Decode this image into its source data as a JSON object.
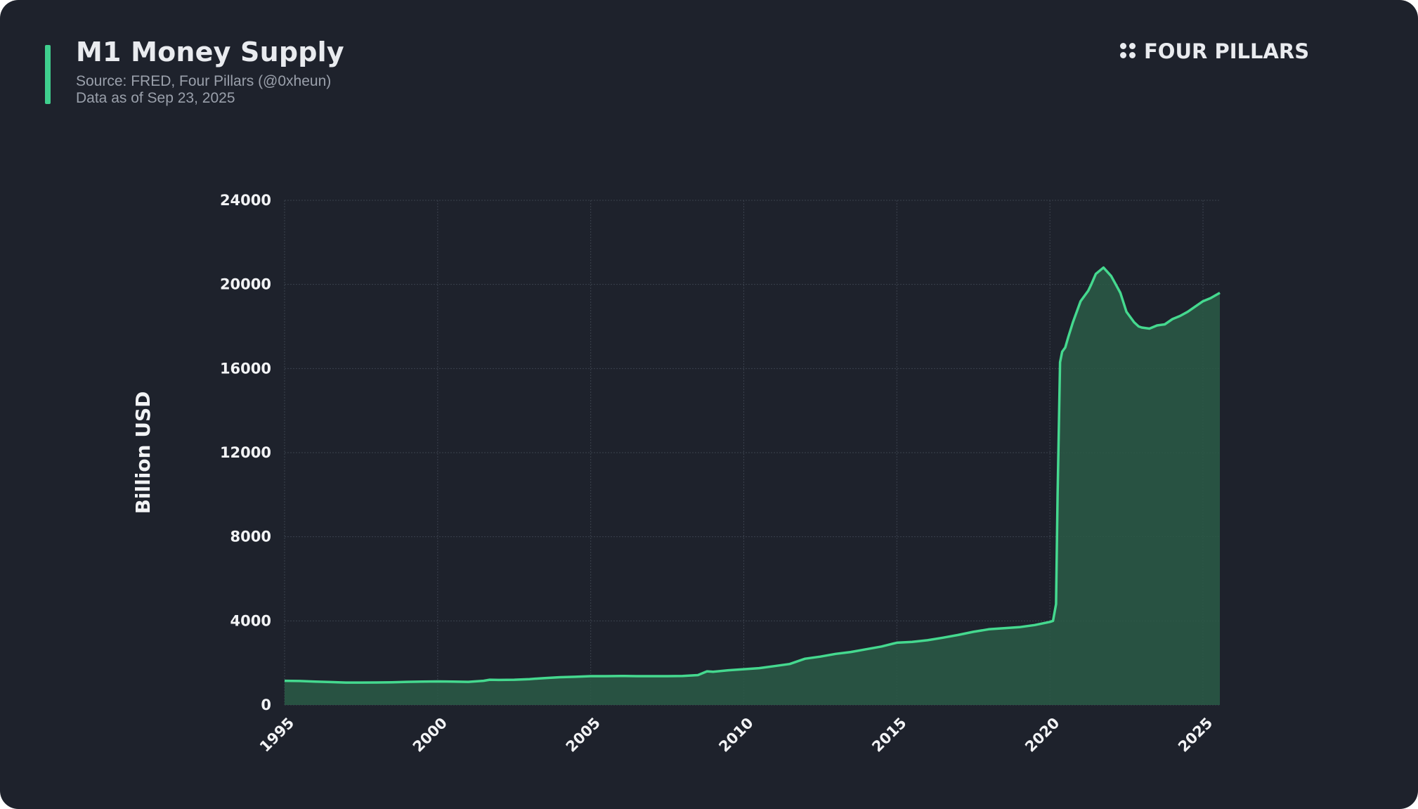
{
  "header": {
    "title": "M1 Money Supply",
    "source": "Source: FRED, Four Pillars (@0xheun)",
    "as_of": "Data as of Sep 23, 2025"
  },
  "brand": {
    "name": "FOUR PILLARS",
    "icon": "four-dots-icon"
  },
  "colors": {
    "background": "#1e222c",
    "accent": "#3fcf8e",
    "line": "#45d98f",
    "area": "#2a5b46",
    "grid": "#3b414d",
    "text": "#f2f3f5"
  },
  "chart_data": {
    "type": "area",
    "title": "M1 Money Supply",
    "xlabel": "",
    "ylabel": "Billion USD",
    "xlim": [
      1995,
      2025.55
    ],
    "ylim": [
      0,
      24000
    ],
    "x_ticks": [
      1995,
      2000,
      2005,
      2010,
      2015,
      2020,
      2025
    ],
    "y_ticks": [
      0,
      4000,
      8000,
      12000,
      16000,
      20000,
      24000
    ],
    "grid": true,
    "legend": "none",
    "series": [
      {
        "x": [
          1995.0,
          1995.5,
          1996.0,
          1996.5,
          1997.0,
          1997.5,
          1998.0,
          1998.5,
          1999.0,
          1999.5,
          2000.0,
          2000.5,
          2001.0,
          2001.5,
          2001.7,
          2002.0,
          2002.5,
          2003.0,
          2003.5,
          2004.0,
          2004.5,
          2005.0,
          2005.5,
          2006.0,
          2006.5,
          2007.0,
          2007.5,
          2008.0,
          2008.5,
          2008.8,
          2009.0,
          2009.5,
          2010.0,
          2010.5,
          2011.0,
          2011.5,
          2011.8,
          2012.0,
          2012.5,
          2013.0,
          2013.5,
          2014.0,
          2014.5,
          2015.0,
          2015.5,
          2016.0,
          2016.5,
          2017.0,
          2017.5,
          2018.0,
          2018.5,
          2019.0,
          2019.5,
          2020.0,
          2020.1,
          2020.2,
          2020.25,
          2020.33,
          2020.4,
          2020.5,
          2020.6,
          2020.75,
          2021.0,
          2021.25,
          2021.35,
          2021.5,
          2021.75,
          2022.0,
          2022.15,
          2022.3,
          2022.5,
          2022.75,
          2022.9,
          2023.0,
          2023.25,
          2023.5,
          2023.75,
          2024.0,
          2024.25,
          2024.5,
          2024.75,
          2025.0,
          2025.25,
          2025.55
        ],
        "y": [
          1150,
          1140,
          1110,
          1090,
          1065,
          1065,
          1070,
          1080,
          1100,
          1110,
          1120,
          1110,
          1100,
          1150,
          1200,
          1190,
          1200,
          1230,
          1280,
          1320,
          1340,
          1370,
          1370,
          1380,
          1370,
          1370,
          1370,
          1380,
          1420,
          1600,
          1580,
          1650,
          1700,
          1750,
          1850,
          1950,
          2100,
          2200,
          2300,
          2430,
          2520,
          2650,
          2780,
          2960,
          3000,
          3080,
          3200,
          3330,
          3480,
          3600,
          3650,
          3700,
          3800,
          3950,
          4000,
          4800,
          10000,
          16300,
          16800,
          17000,
          17500,
          18200,
          19200,
          19700,
          20000,
          20500,
          20800,
          20400,
          20000,
          19600,
          18700,
          18200,
          18000,
          17950,
          17900,
          18050,
          18100,
          18350,
          18500,
          18700,
          18950,
          19200,
          19350,
          19600
        ]
      }
    ]
  }
}
